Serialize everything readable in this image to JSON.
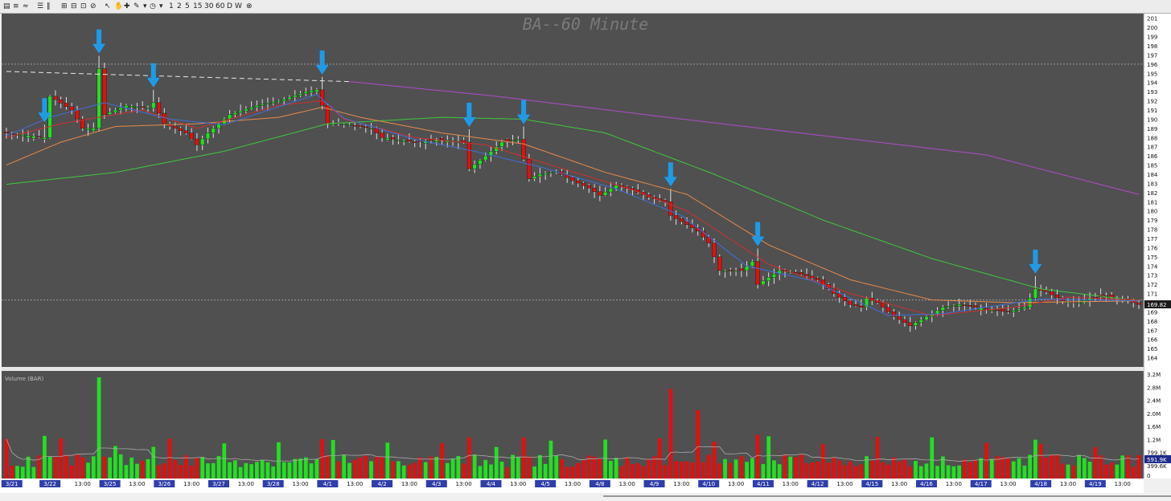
{
  "toolbar": {
    "icons": [
      "chart-type-icon",
      "bar-style-icon",
      "draw-style-icon",
      "layout-icon",
      "split-icon",
      "zoom-in-icon",
      "zoom-out-icon",
      "zoom-fit-icon",
      "zoom-reset-icon",
      "cursor-icon",
      "hand-icon",
      "crosshair-icon",
      "pencil-icon",
      "dropdown-icon",
      "clock-icon",
      "dropdown-icon"
    ],
    "intervals": [
      "1",
      "2",
      "5",
      "15",
      "30",
      "60",
      "D",
      "W"
    ],
    "close_icon": "close-circle-icon"
  },
  "chart_data": {
    "type": "candlestick",
    "title": "BA--60 Minute",
    "price_axis": {
      "min": 163,
      "max": 201.5,
      "ticks": [
        164,
        165,
        166,
        167,
        168,
        169,
        170,
        171,
        172,
        173,
        174,
        175,
        176,
        177,
        178,
        179,
        180,
        181,
        182,
        183,
        184,
        185,
        186,
        187,
        188,
        189,
        190,
        191,
        192,
        193,
        194,
        195,
        196,
        197,
        198,
        199,
        200,
        201
      ]
    },
    "last_price_label": "169.82",
    "reference_lines": [
      196,
      170.3
    ],
    "date_labels": [
      {
        "i": 1,
        "t": "3/21",
        "day": true
      },
      {
        "i": 8,
        "t": "3/22",
        "day": true
      },
      {
        "i": 14,
        "t": "13:00",
        "day": false
      },
      {
        "i": 19,
        "t": "3/25",
        "day": true
      },
      {
        "i": 24,
        "t": "13:00",
        "day": false
      },
      {
        "i": 29,
        "t": "3/26",
        "day": true
      },
      {
        "i": 34,
        "t": "13:00",
        "day": false
      },
      {
        "i": 39,
        "t": "3/27",
        "day": true
      },
      {
        "i": 44,
        "t": "13:00",
        "day": false
      },
      {
        "i": 49,
        "t": "3/28",
        "day": true
      },
      {
        "i": 54,
        "t": "13:00",
        "day": false
      },
      {
        "i": 59,
        "t": "4/1",
        "day": true
      },
      {
        "i": 64,
        "t": "13:00",
        "day": false
      },
      {
        "i": 69,
        "t": "4/2",
        "day": true
      },
      {
        "i": 74,
        "t": "13:00",
        "day": false
      },
      {
        "i": 79,
        "t": "4/3",
        "day": true
      },
      {
        "i": 84,
        "t": "13:00",
        "day": false
      },
      {
        "i": 89,
        "t": "4/4",
        "day": true
      },
      {
        "i": 94,
        "t": "13:00",
        "day": false
      },
      {
        "i": 99,
        "t": "4/5",
        "day": true
      },
      {
        "i": 104,
        "t": "13:00",
        "day": false
      },
      {
        "i": 109,
        "t": "4/8",
        "day": true
      },
      {
        "i": 114,
        "t": "13:00",
        "day": false
      },
      {
        "i": 119,
        "t": "4/9",
        "day": true
      },
      {
        "i": 124,
        "t": "13:00",
        "day": false
      },
      {
        "i": 129,
        "t": "4/10",
        "day": true
      },
      {
        "i": 134,
        "t": "13:00",
        "day": false
      },
      {
        "i": 139,
        "t": "4/11",
        "day": true
      },
      {
        "i": 144,
        "t": "13:00",
        "day": false
      },
      {
        "i": 149,
        "t": "4/12",
        "day": true
      },
      {
        "i": 154,
        "t": "13:00",
        "day": false
      },
      {
        "i": 159,
        "t": "4/15",
        "day": true
      },
      {
        "i": 164,
        "t": "13:00",
        "day": false
      },
      {
        "i": 169,
        "t": "4/16",
        "day": true
      },
      {
        "i": 174,
        "t": "13:00",
        "day": false
      },
      {
        "i": 179,
        "t": "4/17",
        "day": true
      },
      {
        "i": 184,
        "t": "13:00",
        "day": false
      },
      {
        "i": 190,
        "t": "4/18",
        "day": true
      },
      {
        "i": 195,
        "t": "13:00",
        "day": false
      },
      {
        "i": 200,
        "t": "4/19",
        "day": true
      },
      {
        "i": 205,
        "t": "13:00",
        "day": false
      }
    ],
    "arrow_bars": [
      7,
      17,
      27,
      58,
      85,
      95,
      122,
      138,
      189
    ],
    "price_path": [
      [
        0,
        188.5
      ],
      [
        7,
        188
      ],
      [
        8,
        192.5
      ],
      [
        12,
        191
      ],
      [
        14,
        189
      ],
      [
        16,
        189
      ],
      [
        17,
        195.5
      ],
      [
        18,
        190.5
      ],
      [
        22,
        191.5
      ],
      [
        26,
        191.2
      ],
      [
        27,
        191.8
      ],
      [
        29,
        189.5
      ],
      [
        33,
        188.5
      ],
      [
        35,
        187.2
      ],
      [
        37,
        188.5
      ],
      [
        41,
        190.5
      ],
      [
        46,
        191.5
      ],
      [
        50,
        192
      ],
      [
        55,
        193
      ],
      [
        57,
        193.2
      ],
      [
        58,
        191.5
      ],
      [
        59,
        189.5
      ],
      [
        62,
        189.5
      ],
      [
        67,
        189
      ],
      [
        69,
        188
      ],
      [
        75,
        187.5
      ],
      [
        80,
        187.8
      ],
      [
        84,
        187.5
      ],
      [
        85,
        184.6
      ],
      [
        88,
        186
      ],
      [
        91,
        187.5
      ],
      [
        94,
        187.8
      ],
      [
        96,
        183.5
      ],
      [
        98,
        184
      ],
      [
        101,
        184.3
      ],
      [
        104,
        183.3
      ],
      [
        107,
        182.5
      ],
      [
        109,
        181.7
      ],
      [
        112,
        182.8
      ],
      [
        115,
        182.3
      ],
      [
        118,
        181.5
      ],
      [
        121,
        181
      ],
      [
        122,
        179.5
      ],
      [
        125,
        178.5
      ],
      [
        127,
        177.8
      ],
      [
        129,
        176.5
      ],
      [
        131,
        173.5
      ],
      [
        135,
        173.5
      ],
      [
        137,
        174.5
      ],
      [
        138,
        172
      ],
      [
        142,
        173.5
      ],
      [
        145,
        173.3
      ],
      [
        149,
        172.5
      ],
      [
        152,
        171
      ],
      [
        155,
        169.8
      ],
      [
        157,
        169.5
      ],
      [
        158,
        170.5
      ],
      [
        160,
        170
      ],
      [
        163,
        168.5
      ],
      [
        166,
        167.5
      ],
      [
        170,
        168.8
      ],
      [
        172,
        169.5
      ],
      [
        175,
        169.8
      ],
      [
        178,
        169.5
      ],
      [
        181,
        169.2
      ],
      [
        184,
        169
      ],
      [
        187,
        169.5
      ],
      [
        189,
        171.5
      ],
      [
        191,
        171.2
      ],
      [
        194,
        170.2
      ],
      [
        197,
        170
      ],
      [
        199,
        170.5
      ],
      [
        202,
        170.7
      ],
      [
        205,
        170.4
      ],
      [
        208,
        169.8
      ]
    ],
    "series": [
      {
        "name": "",
        "color": "#e8e8e8",
        "dashed": true,
        "points": [
          [
            0,
            195.2
          ],
          [
            63,
            194.1
          ]
        ]
      },
      {
        "name": "",
        "color": "#b04cc8",
        "points": [
          [
            63,
            194.1
          ],
          [
            90,
            192.5
          ],
          [
            120,
            190.3
          ],
          [
            150,
            188.2
          ],
          [
            180,
            186.1
          ],
          [
            208,
            181.8
          ]
        ]
      },
      {
        "name": "",
        "color": "#3ec83e",
        "points": [
          [
            0,
            182.9
          ],
          [
            20,
            184.2
          ],
          [
            40,
            186.5
          ],
          [
            59,
            189.5
          ],
          [
            80,
            190.2
          ],
          [
            95,
            190
          ],
          [
            110,
            188.5
          ],
          [
            130,
            184
          ],
          [
            150,
            179
          ],
          [
            170,
            174.8
          ],
          [
            190,
            171.5
          ],
          [
            208,
            170.2
          ]
        ]
      },
      {
        "name": "",
        "color": "#e88a4a",
        "points": [
          [
            0,
            185
          ],
          [
            10,
            187.5
          ],
          [
            20,
            189.2
          ],
          [
            35,
            189.5
          ],
          [
            50,
            190.2
          ],
          [
            58,
            191.3
          ],
          [
            65,
            190.2
          ],
          [
            80,
            188.5
          ],
          [
            95,
            187.3
          ],
          [
            110,
            184.2
          ],
          [
            125,
            181.8
          ],
          [
            140,
            176.3
          ],
          [
            155,
            172.5
          ],
          [
            170,
            170.3
          ],
          [
            185,
            170
          ],
          [
            208,
            170.2
          ]
        ]
      },
      {
        "name": "",
        "color": "#cc3030",
        "points": [
          [
            0,
            188
          ],
          [
            10,
            189.5
          ],
          [
            25,
            191
          ],
          [
            35,
            189
          ],
          [
            50,
            191.5
          ],
          [
            58,
            192
          ],
          [
            62,
            190
          ],
          [
            75,
            188
          ],
          [
            88,
            187.2
          ],
          [
            100,
            185
          ],
          [
            115,
            182.3
          ],
          [
            125,
            180
          ],
          [
            140,
            174.2
          ],
          [
            155,
            171
          ],
          [
            170,
            168.6
          ],
          [
            185,
            169.5
          ],
          [
            195,
            170.6
          ],
          [
            208,
            170.3
          ]
        ]
      },
      {
        "name": "",
        "color": "#3f6fd8",
        "points": [
          [
            0,
            188.2
          ],
          [
            8,
            190.2
          ],
          [
            18,
            191.8
          ],
          [
            30,
            190
          ],
          [
            40,
            189.4
          ],
          [
            57,
            192.7
          ],
          [
            62,
            190.1
          ],
          [
            75,
            187.8
          ],
          [
            86,
            186.5
          ],
          [
            98,
            184.8
          ],
          [
            112,
            182.4
          ],
          [
            124,
            179.5
          ],
          [
            136,
            174
          ],
          [
            148,
            172.4
          ],
          [
            162,
            168.6
          ],
          [
            172,
            168.8
          ],
          [
            190,
            170.4
          ],
          [
            208,
            170.2
          ]
        ]
      }
    ],
    "volume_pane": {
      "label": "Volume (BAR)",
      "axis_labels": [
        "3.2M",
        "2.8M",
        "2.4M",
        "2.0M",
        "1.6M",
        "1.2M",
        "799.1K",
        "399.6K",
        "0"
      ],
      "axis_values": [
        3.2,
        2.8,
        2.4,
        2.0,
        1.6,
        1.2,
        0.7991,
        0.3996,
        0
      ],
      "last_volume_label": "591.9K",
      "avg_line_color": "#aaaaaa"
    }
  },
  "colors": {
    "background": "#505050",
    "grid": "#5c5c5c",
    "up": "#22e022",
    "down": "#e01010",
    "wick": "#e0e0e0",
    "arrow": "#1e9be8",
    "title": "#7a7a7a",
    "axis_bg": "#ffffff",
    "date_label_bg": "#2f3ea8"
  }
}
